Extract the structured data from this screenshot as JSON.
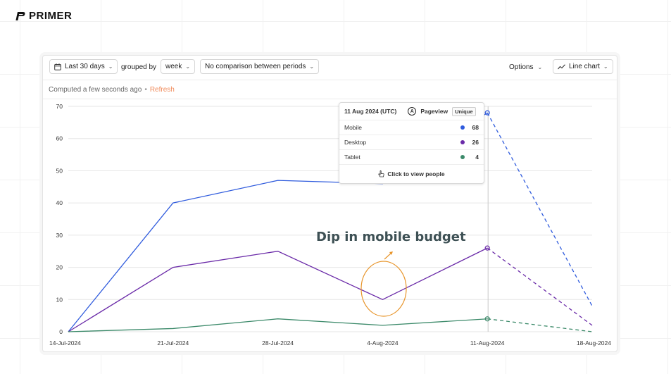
{
  "brand": {
    "name": "PRIMER"
  },
  "toolbar": {
    "date_range": "Last 30 days",
    "grouped_by_label": "grouped by",
    "interval": "week",
    "comparison": "No comparison between periods",
    "options_label": "Options",
    "chart_type_label": "Line chart"
  },
  "status": {
    "computed": "Computed a few seconds ago",
    "separator": "•",
    "refresh": "Refresh"
  },
  "annotation": {
    "text": "Dip in mobile budget"
  },
  "tooltip": {
    "date": "11 Aug 2024 (UTC)",
    "avatar_letter": "A",
    "event": "Pageview",
    "badge": "Unique",
    "rows": [
      {
        "label": "Mobile",
        "value": "68",
        "color": "#2f5bdd"
      },
      {
        "label": "Desktop",
        "value": "26",
        "color": "#6a2aa8"
      },
      {
        "label": "Tablet",
        "value": "4",
        "color": "#3c8a6a"
      }
    ],
    "footer": "Click to view people"
  },
  "chart_data": {
    "type": "line",
    "x": [
      "14-Jul-2024",
      "21-Jul-2024",
      "28-Jul-2024",
      "4-Aug-2024",
      "11-Aug-2024",
      "18-Aug-2024"
    ],
    "ylim": [
      0,
      70
    ],
    "yticks": [
      0,
      10,
      20,
      30,
      40,
      50,
      60,
      70
    ],
    "grid": true,
    "series": [
      {
        "name": "Mobile",
        "color": "#2f5bdd",
        "values": [
          0,
          40,
          47,
          46,
          68,
          8
        ]
      },
      {
        "name": "Desktop",
        "color": "#6a2aa8",
        "values": [
          0,
          20,
          25,
          10,
          26,
          2
        ]
      },
      {
        "name": "Tablet",
        "color": "#3c8a6a",
        "values": [
          0,
          1,
          4,
          2,
          4,
          0
        ]
      }
    ],
    "incomplete_from_index": 4
  }
}
